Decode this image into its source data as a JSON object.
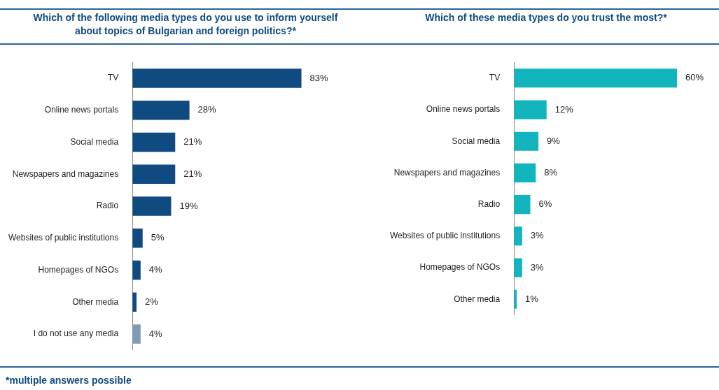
{
  "chart_data": [
    {
      "type": "bar",
      "orientation": "horizontal",
      "title": "Which of the following media types do you use to inform yourself about topics of Bulgarian and foreign politics?*",
      "categories": [
        "TV",
        "Online news portals",
        "Social media",
        "Newspapers and magazines",
        "Radio",
        "Websites of public institutions",
        "Homepages of NGOs",
        "Other media",
        "I do not use any media"
      ],
      "values": [
        83,
        28,
        21,
        21,
        19,
        5,
        4,
        2,
        4
      ],
      "value_labels": [
        "83%",
        "28%",
        "21%",
        "21%",
        "19%",
        "5%",
        "4%",
        "2%",
        "4%"
      ],
      "colors": [
        "#0f4a80",
        "#0f4a80",
        "#0f4a80",
        "#0f4a80",
        "#0f4a80",
        "#0f4a80",
        "#0f4a80",
        "#0f4a80",
        "#7f9bb8"
      ],
      "tick_labels": "y",
      "annotations": [
        "*multiple answers possible"
      ]
    },
    {
      "type": "bar",
      "orientation": "horizontal",
      "title": "Which of these media types do you trust the most?*",
      "categories": [
        "TV",
        "Online news portals",
        "Social media",
        "Newspapers and magazines",
        "Radio",
        "Websites of public institutions",
        "Homepages of NGOs",
        "Other media"
      ],
      "values": [
        60,
        12,
        9,
        8,
        6,
        3,
        3,
        1
      ],
      "value_labels": [
        "60%",
        "12%",
        "9%",
        "8%",
        "6%",
        "3%",
        "3%",
        "1%"
      ],
      "colors": [
        "#12b5bd",
        "#12b5bd",
        "#12b5bd",
        "#12b5bd",
        "#12b5bd",
        "#12b5bd",
        "#12b5bd",
        "#12b5bd"
      ],
      "tick_labels": "y"
    }
  ]
}
